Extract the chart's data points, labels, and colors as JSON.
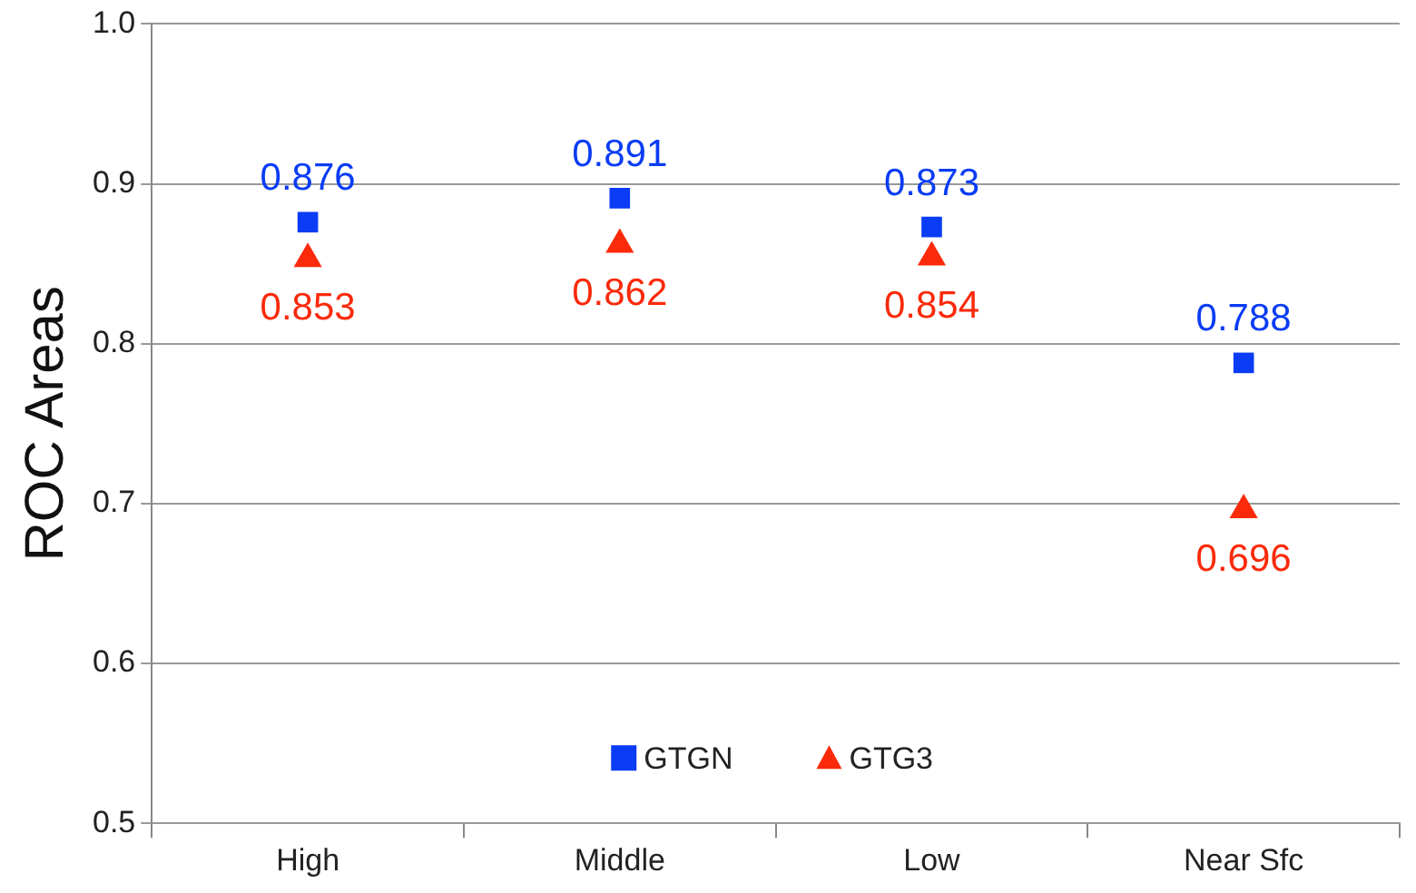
{
  "chart_data": {
    "type": "scatter",
    "ylabel": "ROC Areas",
    "categories": [
      "High",
      "Middle",
      "Low",
      "Near Sfc"
    ],
    "series": [
      {
        "name": "GTGN",
        "color": "#0a3cf5",
        "marker": "square",
        "values": [
          0.876,
          0.891,
          0.873,
          0.788
        ]
      },
      {
        "name": "GTG3",
        "color": "#fa2a0a",
        "marker": "triangle",
        "values": [
          0.853,
          0.862,
          0.854,
          0.696
        ]
      }
    ],
    "ylim": [
      0.5,
      1.0
    ],
    "yticks": [
      0.5,
      0.6,
      0.7,
      0.8,
      0.9,
      {
        "value": 1.0,
        "label": "1.0"
      }
    ],
    "grid": "y",
    "legend": "bottom",
    "data_labels": true
  }
}
